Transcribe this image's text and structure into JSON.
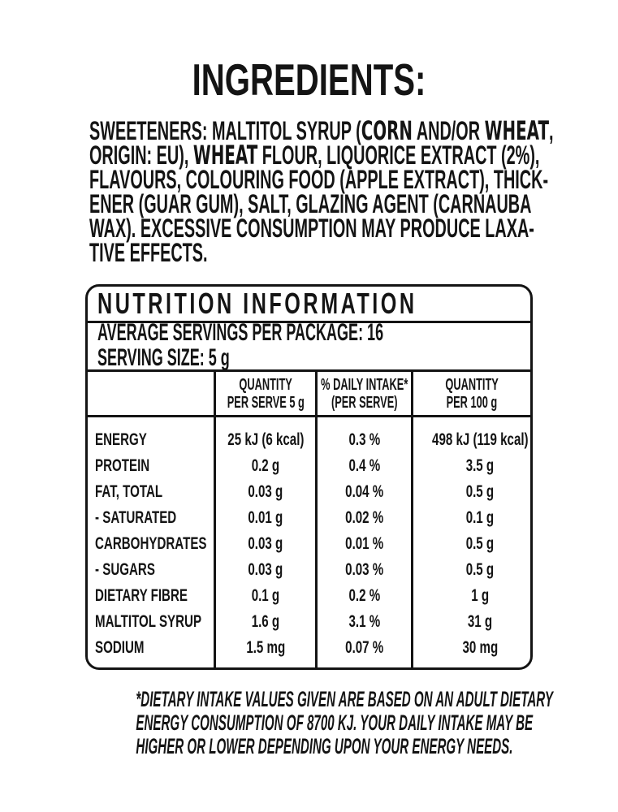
{
  "colors": {
    "ink": "#141414",
    "background": "#ffffff"
  },
  "ingredients": {
    "title": "INGREDIENTS:",
    "lines": [
      [
        {
          "t": "SWEETENERS: MALTITOL SYRUP ("
        },
        {
          "t": "CORN",
          "b": true
        },
        {
          "t": " AND/OR "
        },
        {
          "t": "WHEAT",
          "b": true
        },
        {
          "t": ","
        }
      ],
      [
        {
          "t": "ORIGIN: EU), "
        },
        {
          "t": "WHEAT",
          "b": true
        },
        {
          "t": " FLOUR, LIQUORICE EXTRACT (2%),"
        }
      ],
      [
        {
          "t": "FLAVOURS, COLOURING FOOD (APPLE EXTRACT), THICK-"
        }
      ],
      [
        {
          "t": "ENER (GUAR GUM), SALT, GLAZING AGENT (CARNAUBA"
        }
      ],
      [
        {
          "t": "WAX). EXCESSIVE CONSUMPTION MAY PRODUCE LAXA-"
        }
      ],
      [
        {
          "t": "TIVE EFFECTS."
        }
      ]
    ]
  },
  "nutrition": {
    "title": "NUTRITION INFORMATION",
    "servings_per_package": "AVERAGE SERVINGS PER PACKAGE: 16",
    "serving_size": "SERVING SIZE: 5 g",
    "columns": [
      {
        "top": "",
        "bottom": ""
      },
      {
        "top": "QUANTITY",
        "bottom": "PER SERVE 5 g"
      },
      {
        "top": "% DAILY INTAKE*",
        "bottom": "(PER SERVE)"
      },
      {
        "top": "QUANTITY",
        "bottom": "PER 100 g"
      }
    ],
    "rows": [
      {
        "label": "ENERGY",
        "per_serve": "25 kJ (6 kcal)",
        "daily_intake": "0.3 %",
        "per_100": "498 kJ (119 kcal)"
      },
      {
        "label": "PROTEIN",
        "per_serve": "0.2 g",
        "daily_intake": "0.4 %",
        "per_100": "3.5 g"
      },
      {
        "label": "FAT, TOTAL",
        "per_serve": "0.03 g",
        "daily_intake": "0.04 %",
        "per_100": "0.5 g"
      },
      {
        "label": "- SATURATED",
        "per_serve": "0.01 g",
        "daily_intake": "0.02 %",
        "per_100": "0.1 g"
      },
      {
        "label": "CARBOHYDRATES",
        "per_serve": "0.03 g",
        "daily_intake": "0.01 %",
        "per_100": "0.5 g"
      },
      {
        "label": "- SUGARS",
        "per_serve": "0.03 g",
        "daily_intake": "0.03 %",
        "per_100": "0.5 g"
      },
      {
        "label": "DIETARY FIBRE",
        "per_serve": "0.1 g",
        "daily_intake": "0.2 %",
        "per_100": "1 g"
      },
      {
        "label": "MALTITOL SYRUP",
        "per_serve": "1.6 g",
        "daily_intake": "3.1 %",
        "per_100": "31 g"
      },
      {
        "label": "SODIUM",
        "per_serve": "1.5 mg",
        "daily_intake": "0.07 %",
        "per_100": "30 mg"
      }
    ]
  },
  "footnote": {
    "lines": [
      "*DIETARY INTAKE VALUES GIVEN ARE BASED ON AN ADULT DIETARY",
      "ENERGY CONSUMPTION OF 8700 KJ. YOUR DAILY INTAKE MAY BE",
      "HIGHER OR LOWER DEPENDING UPON YOUR ENERGY NEEDS."
    ]
  }
}
